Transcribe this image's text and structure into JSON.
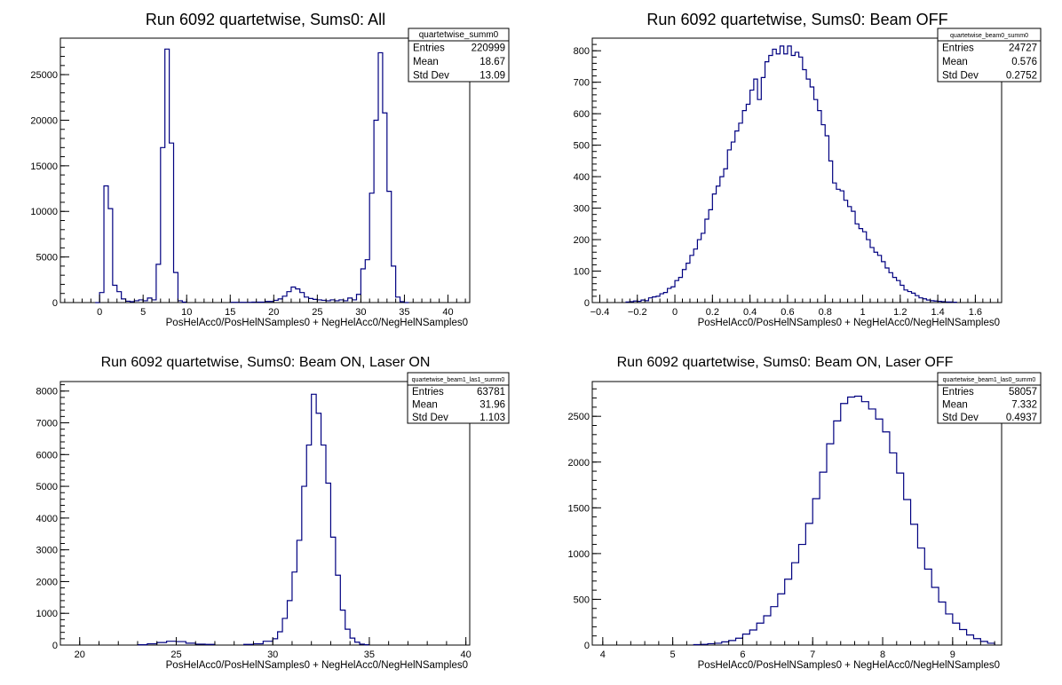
{
  "chart_data": [
    {
      "type": "histogram",
      "title": "Run 6092 quartetwise, Sums0: All",
      "xlabel": "PosHelAcc0/PosHelNSamples0 + NegHelAcc0/NegHelNSamples0",
      "ylabel": "",
      "xlim": [
        -4.5,
        42.5
      ],
      "ylim": [
        0,
        29000
      ],
      "xticks": [
        0,
        5,
        10,
        15,
        20,
        25,
        30,
        35,
        40
      ],
      "xtick_labels": [
        "0",
        "5",
        "10",
        "15",
        "20",
        "25",
        "30",
        "35",
        "40"
      ],
      "yticks": [
        0,
        5000,
        10000,
        15000,
        20000,
        25000
      ],
      "ytick_labels": [
        "0",
        "5000",
        "10000",
        "15000",
        "20000",
        "25000"
      ],
      "stats": {
        "name": "quartetwise_summ0",
        "rows": [
          [
            "Entries",
            "220999"
          ],
          [
            "Mean",
            "18.67"
          ],
          [
            "Std Dev",
            "13.09"
          ]
        ]
      },
      "bins": [
        [
          -0.5,
          0.0,
          0
        ],
        [
          0.0,
          0.5,
          1100
        ],
        [
          0.5,
          1.0,
          12800
        ],
        [
          1.0,
          1.5,
          10300
        ],
        [
          1.5,
          2.0,
          1900
        ],
        [
          2.0,
          2.5,
          1200
        ],
        [
          2.5,
          3.0,
          400
        ],
        [
          3.0,
          3.5,
          150
        ],
        [
          3.5,
          4.0,
          100
        ],
        [
          4.0,
          4.5,
          200
        ],
        [
          4.5,
          5.0,
          300
        ],
        [
          5.0,
          5.5,
          200
        ],
        [
          5.5,
          6.0,
          500
        ],
        [
          6.0,
          6.5,
          300
        ],
        [
          6.5,
          7.0,
          4200
        ],
        [
          7.0,
          7.5,
          17000
        ],
        [
          7.5,
          8.0,
          27800
        ],
        [
          8.0,
          8.5,
          17500
        ],
        [
          8.5,
          9.0,
          3300
        ],
        [
          9.0,
          9.5,
          200
        ],
        [
          9.5,
          10.0,
          50
        ],
        [
          15.0,
          17.5,
          30
        ],
        [
          17.5,
          19.0,
          50
        ],
        [
          19.0,
          20.0,
          120
        ],
        [
          20.0,
          20.5,
          250
        ],
        [
          20.5,
          21.0,
          400
        ],
        [
          21.0,
          21.5,
          700
        ],
        [
          21.5,
          22.0,
          1200
        ],
        [
          22.0,
          22.5,
          1700
        ],
        [
          22.5,
          23.0,
          1500
        ],
        [
          23.0,
          23.5,
          1100
        ],
        [
          23.5,
          24.0,
          600
        ],
        [
          24.0,
          24.5,
          450
        ],
        [
          24.5,
          25.0,
          350
        ],
        [
          25.0,
          25.5,
          300
        ],
        [
          25.5,
          26.0,
          250
        ],
        [
          26.0,
          26.5,
          200
        ],
        [
          26.5,
          27.0,
          300
        ],
        [
          27.0,
          27.5,
          200
        ],
        [
          27.5,
          28.0,
          300
        ],
        [
          28.0,
          28.5,
          200
        ],
        [
          28.5,
          29.0,
          500
        ],
        [
          29.0,
          29.5,
          300
        ],
        [
          29.5,
          30.0,
          900
        ],
        [
          30.0,
          30.5,
          3700
        ],
        [
          30.5,
          31.0,
          4700
        ],
        [
          31.0,
          31.5,
          12000
        ],
        [
          31.5,
          32.0,
          20000
        ],
        [
          32.0,
          32.5,
          27400
        ],
        [
          32.5,
          33.0,
          20800
        ],
        [
          33.0,
          33.5,
          12200
        ],
        [
          33.5,
          34.0,
          4000
        ],
        [
          34.0,
          34.5,
          600
        ],
        [
          34.5,
          35.0,
          100
        ],
        [
          35.0,
          35.5,
          0
        ]
      ]
    },
    {
      "type": "histogram",
      "title": "Run 6092 quartetwise, Sums0: Beam OFF",
      "xlabel": "PosHelAcc0/PosHelNSamples0 + NegHelAcc0/NegHelNSamples0",
      "ylabel": "",
      "xlim": [
        -0.44,
        1.74
      ],
      "ylim": [
        0,
        840
      ],
      "xticks": [
        -0.4,
        -0.2,
        0,
        0.2,
        0.4,
        0.6,
        0.8,
        1,
        1.2,
        1.4,
        1.6
      ],
      "xtick_labels": [
        "−0.4",
        "−0.2",
        "0",
        "0.2",
        "0.4",
        "0.6",
        "0.8",
        "1",
        "1.2",
        "1.4",
        "1.6"
      ],
      "yticks": [
        0,
        100,
        200,
        300,
        400,
        500,
        600,
        700,
        800
      ],
      "ytick_labels": [
        "0",
        "100",
        "200",
        "300",
        "400",
        "500",
        "600",
        "700",
        "800"
      ],
      "stats": {
        "name": "quartetwise_beam0_summ0",
        "rows": [
          [
            "Entries",
            "24727"
          ],
          [
            "Mean",
            "0.576"
          ],
          [
            "Std Dev",
            "0.2752"
          ]
        ]
      },
      "bins": [
        [
          -0.26,
          -0.24,
          2
        ],
        [
          -0.24,
          -0.22,
          3
        ],
        [
          -0.22,
          -0.2,
          5
        ],
        [
          -0.2,
          -0.18,
          4
        ],
        [
          -0.18,
          -0.16,
          8
        ],
        [
          -0.16,
          -0.14,
          6
        ],
        [
          -0.14,
          -0.12,
          15
        ],
        [
          -0.12,
          -0.1,
          18
        ],
        [
          -0.1,
          -0.08,
          20
        ],
        [
          -0.08,
          -0.06,
          28
        ],
        [
          -0.06,
          -0.04,
          32
        ],
        [
          -0.04,
          -0.02,
          45
        ],
        [
          -0.02,
          0.0,
          50
        ],
        [
          0.0,
          0.02,
          70
        ],
        [
          0.02,
          0.04,
          80
        ],
        [
          0.04,
          0.06,
          105
        ],
        [
          0.06,
          0.08,
          125
        ],
        [
          0.08,
          0.1,
          150
        ],
        [
          0.1,
          0.12,
          170
        ],
        [
          0.12,
          0.14,
          200
        ],
        [
          0.14,
          0.16,
          220
        ],
        [
          0.16,
          0.18,
          265
        ],
        [
          0.18,
          0.2,
          295
        ],
        [
          0.2,
          0.22,
          345
        ],
        [
          0.22,
          0.24,
          370
        ],
        [
          0.24,
          0.26,
          400
        ],
        [
          0.26,
          0.28,
          425
        ],
        [
          0.28,
          0.3,
          485
        ],
        [
          0.3,
          0.32,
          510
        ],
        [
          0.32,
          0.34,
          545
        ],
        [
          0.34,
          0.36,
          570
        ],
        [
          0.36,
          0.38,
          610
        ],
        [
          0.38,
          0.4,
          630
        ],
        [
          0.4,
          0.42,
          675
        ],
        [
          0.42,
          0.44,
          710
        ],
        [
          0.44,
          0.46,
          645
        ],
        [
          0.46,
          0.48,
          715
        ],
        [
          0.48,
          0.5,
          765
        ],
        [
          0.5,
          0.52,
          785
        ],
        [
          0.52,
          0.54,
          805
        ],
        [
          0.54,
          0.56,
          790
        ],
        [
          0.56,
          0.58,
          815
        ],
        [
          0.58,
          0.6,
          790
        ],
        [
          0.6,
          0.62,
          815
        ],
        [
          0.62,
          0.64,
          785
        ],
        [
          0.64,
          0.66,
          795
        ],
        [
          0.66,
          0.68,
          780
        ],
        [
          0.68,
          0.7,
          740
        ],
        [
          0.7,
          0.72,
          710
        ],
        [
          0.72,
          0.74,
          685
        ],
        [
          0.74,
          0.76,
          645
        ],
        [
          0.76,
          0.78,
          610
        ],
        [
          0.78,
          0.8,
          565
        ],
        [
          0.8,
          0.82,
          530
        ],
        [
          0.82,
          0.84,
          450
        ],
        [
          0.84,
          0.86,
          380
        ],
        [
          0.86,
          0.88,
          360
        ],
        [
          0.88,
          0.9,
          355
        ],
        [
          0.9,
          0.92,
          325
        ],
        [
          0.92,
          0.94,
          305
        ],
        [
          0.94,
          0.96,
          290
        ],
        [
          0.96,
          0.98,
          250
        ],
        [
          0.98,
          1.0,
          235
        ],
        [
          1.0,
          1.02,
          225
        ],
        [
          1.02,
          1.04,
          200
        ],
        [
          1.04,
          1.06,
          175
        ],
        [
          1.06,
          1.08,
          160
        ],
        [
          1.08,
          1.1,
          150
        ],
        [
          1.1,
          1.12,
          130
        ],
        [
          1.12,
          1.14,
          110
        ],
        [
          1.14,
          1.16,
          95
        ],
        [
          1.16,
          1.18,
          80
        ],
        [
          1.18,
          1.2,
          70
        ],
        [
          1.2,
          1.22,
          55
        ],
        [
          1.22,
          1.24,
          40
        ],
        [
          1.24,
          1.26,
          35
        ],
        [
          1.26,
          1.28,
          30
        ],
        [
          1.28,
          1.3,
          22
        ],
        [
          1.3,
          1.32,
          15
        ],
        [
          1.32,
          1.34,
          12
        ],
        [
          1.34,
          1.36,
          8
        ],
        [
          1.36,
          1.38,
          6
        ],
        [
          1.38,
          1.4,
          5
        ],
        [
          1.4,
          1.42,
          4
        ],
        [
          1.42,
          1.44,
          3
        ],
        [
          1.44,
          1.46,
          2
        ],
        [
          1.46,
          1.48,
          2
        ],
        [
          1.48,
          1.5,
          1
        ]
      ]
    },
    {
      "type": "histogram",
      "title": "Run 6092 quartetwise, Sums0: Beam ON, Laser ON",
      "xlabel": "PosHelAcc0/PosHelNSamples0 + NegHelAcc0/NegHelNSamples0",
      "ylabel": "",
      "xlim": [
        19.0,
        40.2
      ],
      "ylim": [
        0,
        8300
      ],
      "xticks": [
        20,
        25,
        30,
        35,
        40
      ],
      "xtick_labels": [
        "20",
        "25",
        "30",
        "35",
        "40"
      ],
      "yticks": [
        0,
        1000,
        2000,
        3000,
        4000,
        5000,
        6000,
        7000,
        8000
      ],
      "ytick_labels": [
        "0",
        "1000",
        "2000",
        "3000",
        "4000",
        "5000",
        "6000",
        "7000",
        "8000"
      ],
      "stats": {
        "name": "quartetwise_beam1_las1_summ0",
        "rows": [
          [
            "Entries",
            "63781"
          ],
          [
            "Mean",
            "31.96"
          ],
          [
            "Std Dev",
            "1.103"
          ]
        ]
      },
      "bins": [
        [
          23.0,
          23.5,
          10
        ],
        [
          23.5,
          24.0,
          40
        ],
        [
          24.0,
          24.5,
          80
        ],
        [
          24.5,
          25.0,
          120
        ],
        [
          25.0,
          25.5,
          110
        ],
        [
          25.5,
          26.0,
          60
        ],
        [
          26.0,
          26.5,
          30
        ],
        [
          26.5,
          27.0,
          20
        ],
        [
          28.5,
          29.0,
          20
        ],
        [
          29.0,
          29.5,
          40
        ],
        [
          29.5,
          30.0,
          120
        ],
        [
          30.0,
          30.25,
          200
        ],
        [
          30.25,
          30.5,
          420
        ],
        [
          30.5,
          30.75,
          840
        ],
        [
          30.75,
          31.0,
          1400
        ],
        [
          31.0,
          31.25,
          2300
        ],
        [
          31.25,
          31.5,
          3300
        ],
        [
          31.5,
          31.75,
          5000
        ],
        [
          31.75,
          32.0,
          6300
        ],
        [
          32.0,
          32.25,
          7900
        ],
        [
          32.25,
          32.5,
          7300
        ],
        [
          32.5,
          32.75,
          6300
        ],
        [
          32.75,
          33.0,
          5100
        ],
        [
          33.0,
          33.25,
          3400
        ],
        [
          33.25,
          33.5,
          2200
        ],
        [
          33.5,
          33.75,
          1100
        ],
        [
          33.75,
          34.0,
          500
        ],
        [
          34.0,
          34.25,
          220
        ],
        [
          34.25,
          34.5,
          90
        ],
        [
          34.5,
          34.75,
          30
        ],
        [
          34.75,
          35.0,
          10
        ]
      ]
    },
    {
      "type": "histogram",
      "title": "Run 6092 quartetwise, Sums0: Beam ON, Laser OFF",
      "xlabel": "PosHelAcc0/PosHelNSamples0 + NegHelAcc0/NegHelNSamples0",
      "ylabel": "",
      "xlim": [
        3.85,
        9.7
      ],
      "ylim": [
        0,
        2880
      ],
      "xticks": [
        4,
        5,
        6,
        7,
        8,
        9
      ],
      "xtick_labels": [
        "4",
        "5",
        "6",
        "7",
        "8",
        "9"
      ],
      "yticks": [
        0,
        500,
        1000,
        1500,
        2000,
        2500
      ],
      "ytick_labels": [
        "0",
        "500",
        "1000",
        "1500",
        "2000",
        "2500"
      ],
      "stats": {
        "name": "quartetwise_beam1_las0_summ0",
        "rows": [
          [
            "Entries",
            "58057"
          ],
          [
            "Mean",
            "7.332"
          ],
          [
            "Std Dev",
            "0.4937"
          ]
        ]
      },
      "bins": [
        [
          5.3,
          5.4,
          5
        ],
        [
          5.4,
          5.5,
          8
        ],
        [
          5.5,
          5.6,
          15
        ],
        [
          5.6,
          5.7,
          20
        ],
        [
          5.7,
          5.8,
          35
        ],
        [
          5.8,
          5.9,
          50
        ],
        [
          5.9,
          6.0,
          75
        ],
        [
          6.0,
          6.1,
          120
        ],
        [
          6.1,
          6.2,
          165
        ],
        [
          6.2,
          6.3,
          240
        ],
        [
          6.3,
          6.4,
          320
        ],
        [
          6.4,
          6.5,
          420
        ],
        [
          6.5,
          6.6,
          560
        ],
        [
          6.6,
          6.7,
          720
        ],
        [
          6.7,
          6.8,
          900
        ],
        [
          6.8,
          6.9,
          1100
        ],
        [
          6.9,
          7.0,
          1330
        ],
        [
          7.0,
          7.1,
          1600
        ],
        [
          7.1,
          7.2,
          1890
        ],
        [
          7.2,
          7.3,
          2200
        ],
        [
          7.3,
          7.4,
          2450
        ],
        [
          7.4,
          7.5,
          2640
        ],
        [
          7.5,
          7.6,
          2710
        ],
        [
          7.6,
          7.7,
          2720
        ],
        [
          7.7,
          7.8,
          2660
        ],
        [
          7.8,
          7.9,
          2580
        ],
        [
          7.9,
          8.0,
          2470
        ],
        [
          8.0,
          8.1,
          2330
        ],
        [
          8.1,
          8.2,
          2100
        ],
        [
          8.2,
          8.3,
          1880
        ],
        [
          8.3,
          8.4,
          1590
        ],
        [
          8.4,
          8.5,
          1320
        ],
        [
          8.5,
          8.6,
          1060
        ],
        [
          8.6,
          8.7,
          830
        ],
        [
          8.7,
          8.8,
          630
        ],
        [
          8.8,
          8.9,
          470
        ],
        [
          8.9,
          9.0,
          340
        ],
        [
          9.0,
          9.1,
          240
        ],
        [
          9.1,
          9.2,
          170
        ],
        [
          9.2,
          9.3,
          110
        ],
        [
          9.3,
          9.4,
          70
        ],
        [
          9.4,
          9.5,
          40
        ],
        [
          9.5,
          9.6,
          20
        ]
      ]
    }
  ]
}
